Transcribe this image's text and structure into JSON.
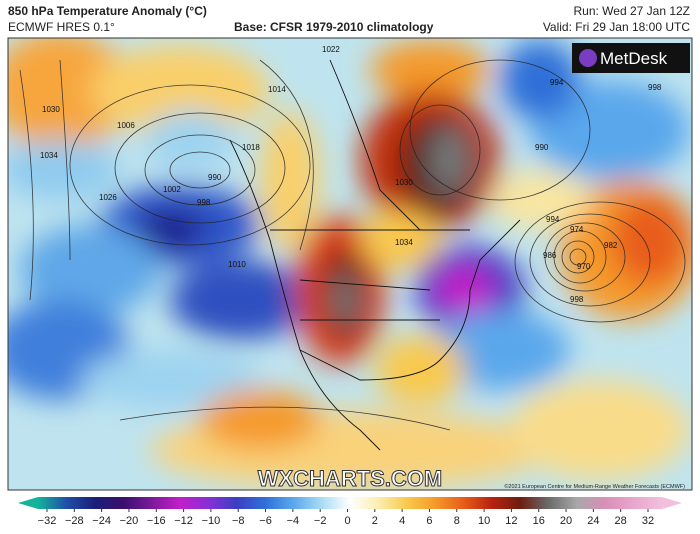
{
  "header": {
    "title": "850 hPa Temperature Anomaly (°C)",
    "model": "ECMWF HRES 0.1°",
    "base": "Base: CFSR 1979-2010 climatology",
    "run": "Run: Wed 27 Jan 12Z",
    "valid": "Valid: Fri 29 Jan 18:00 UTC"
  },
  "map": {
    "logo": "MetDesk",
    "watermark": "WXCHARTS.COM",
    "copyright": "©2021 European Centre for Medium-Range Weather Forecasts (ECMWF)",
    "isobar_labels": [
      "1022",
      "1014",
      "1006",
      "1030",
      "1034",
      "1026",
      "1002",
      "998",
      "990",
      "1018",
      "1010",
      "1030",
      "994",
      "998",
      "990",
      "994",
      "986",
      "974",
      "970",
      "982",
      "998",
      "1034"
    ]
  },
  "colorbar": {
    "ticks": [
      -32,
      -28,
      -24,
      -20,
      -16,
      -12,
      -10,
      -8,
      -6,
      -4,
      -2,
      0,
      2,
      4,
      6,
      8,
      10,
      12,
      16,
      20,
      24,
      28,
      32
    ],
    "colors": [
      "#14b39a",
      "#1f4fa8",
      "#1b1f7a",
      "#3a0f6e",
      "#7a1a9a",
      "#c21fc9",
      "#8a2fd6",
      "#3b3fc4",
      "#2f6fd8",
      "#5aa7ec",
      "#a9dcf3",
      "#ffffff",
      "#fbeeb0",
      "#f9c94e",
      "#f59a2a",
      "#e85d1a",
      "#b8220f",
      "#6e1d10",
      "#6b6b6b",
      "#a8a8a8",
      "#d98fb8",
      "#e9a6cc",
      "#f2c0dc"
    ]
  }
}
